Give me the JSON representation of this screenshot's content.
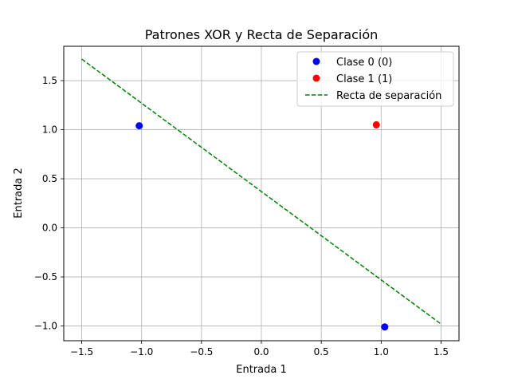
{
  "chart_data": {
    "type": "scatter",
    "title": "Patrones XOR y Recta de Separación",
    "xlabel": "Entrada 1",
    "ylabel": "Entrada 2",
    "xlim": [
      -1.65,
      1.65
    ],
    "ylim": [
      -1.15,
      1.85
    ],
    "xticks": [
      -1.5,
      -1.0,
      -0.5,
      0.0,
      0.5,
      1.0,
      1.5
    ],
    "xtick_labels": [
      "−1.5",
      "−1.0",
      "−0.5",
      "0.0",
      "0.5",
      "1.0",
      "1.5"
    ],
    "yticks": [
      -1.0,
      -0.5,
      0.0,
      0.5,
      1.0,
      1.5
    ],
    "ytick_labels": [
      "−1.0",
      "−0.5",
      "0.0",
      "0.5",
      "1.0",
      "1.5"
    ],
    "grid": true,
    "legend_position": "top-right",
    "series": [
      {
        "name": "Clase 0 (0)",
        "kind": "scatter",
        "color": "#0000ff",
        "points": [
          [
            -1.02,
            1.04
          ],
          [
            1.03,
            -1.01
          ]
        ]
      },
      {
        "name": "Clase 1 (1)",
        "kind": "scatter",
        "color": "#ff0000",
        "points": [
          [
            0.96,
            1.05
          ]
        ]
      },
      {
        "name": "Recta de separación",
        "kind": "line",
        "style": "dashed",
        "color": "#008000",
        "points": [
          [
            -1.5,
            1.72
          ],
          [
            1.5,
            -0.98
          ]
        ]
      }
    ]
  }
}
